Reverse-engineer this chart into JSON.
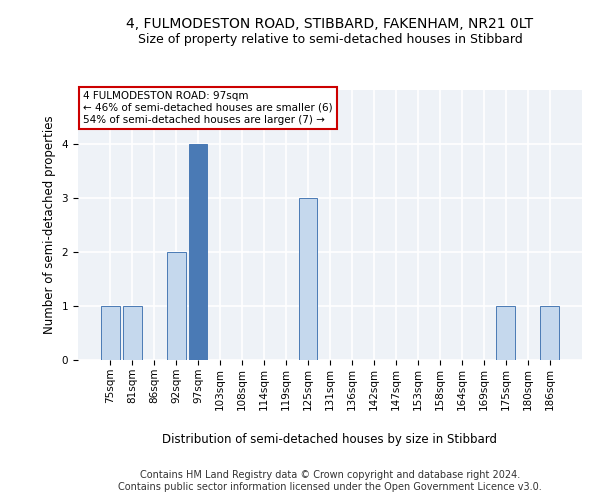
{
  "title_line1": "4, FULMODESTON ROAD, STIBBARD, FAKENHAM, NR21 0LT",
  "title_line2": "Size of property relative to semi-detached houses in Stibbard",
  "xlabel": "Distribution of semi-detached houses by size in Stibbard",
  "ylabel": "Number of semi-detached properties",
  "categories": [
    "75sqm",
    "81sqm",
    "86sqm",
    "92sqm",
    "97sqm",
    "103sqm",
    "108sqm",
    "114sqm",
    "119sqm",
    "125sqm",
    "131sqm",
    "136sqm",
    "142sqm",
    "147sqm",
    "153sqm",
    "158sqm",
    "164sqm",
    "169sqm",
    "175sqm",
    "180sqm",
    "186sqm"
  ],
  "values": [
    1,
    1,
    0,
    2,
    4,
    0,
    0,
    0,
    0,
    3,
    0,
    0,
    0,
    0,
    0,
    0,
    0,
    0,
    1,
    0,
    1
  ],
  "highlight_index": 4,
  "highlight_color": "#4a7ab5",
  "normal_color": "#c5d8ed",
  "bar_edge_color": "#4a7ab5",
  "annotation_text": "4 FULMODESTON ROAD: 97sqm\n← 46% of semi-detached houses are smaller (6)\n54% of semi-detached houses are larger (7) →",
  "annotation_box_color": "#ffffff",
  "annotation_box_edge": "#cc0000",
  "footer_line1": "Contains HM Land Registry data © Crown copyright and database right 2024.",
  "footer_line2": "Contains public sector information licensed under the Open Government Licence v3.0.",
  "ylim": [
    0,
    5
  ],
  "yticks": [
    0,
    1,
    2,
    3,
    4
  ],
  "bg_color": "#eef2f7",
  "grid_color": "#ffffff",
  "title_fontsize": 10,
  "subtitle_fontsize": 9,
  "axis_label_fontsize": 8.5,
  "tick_fontsize": 7.5,
  "footer_fontsize": 7
}
